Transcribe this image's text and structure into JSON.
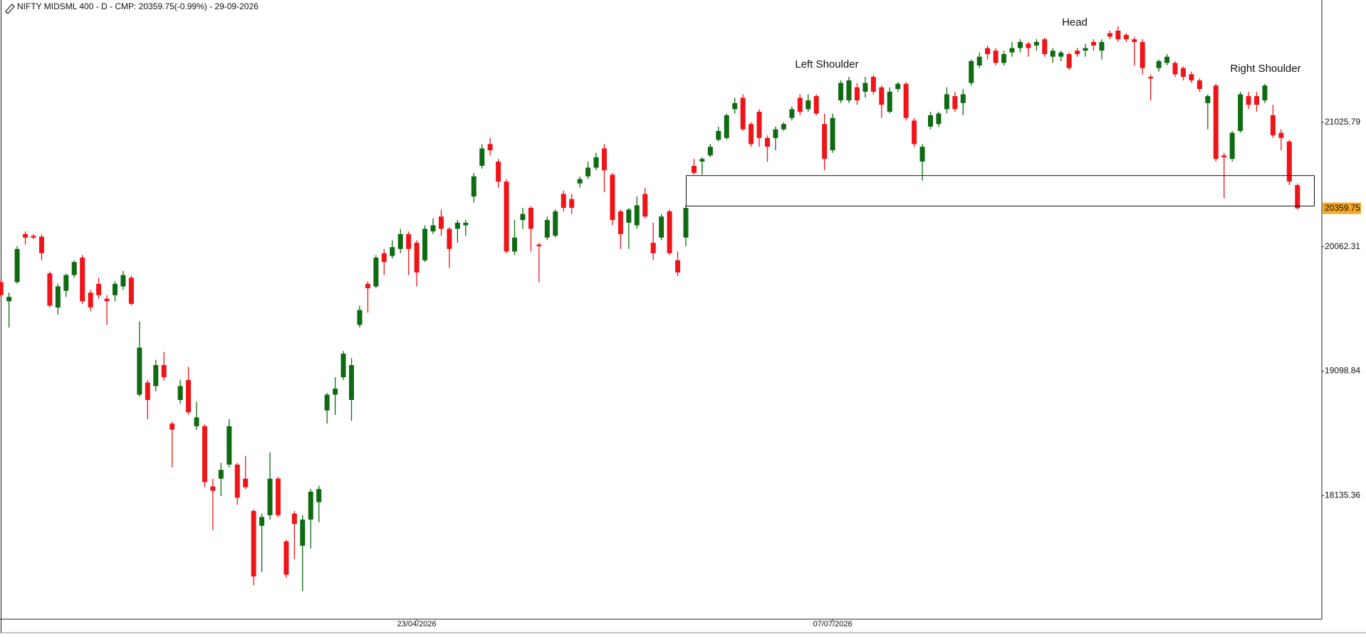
{
  "chart_data": {
    "type": "candlestick",
    "title": "NIFTY MIDSML 400 - D - CMP: 20359.75(-0.99%) - 29-09-2026",
    "annotations": [
      "Left Shoulder",
      "Head",
      "Right Shoulder"
    ],
    "cmp": 20359.75,
    "zone": [
      20377,
      20613
    ],
    "up_color": "#0f6b12",
    "down_color": "#f01418",
    "cmp_color": "#f5a623",
    "ylim": [
      17179,
      21972
    ],
    "yticks": [
      18135.36,
      19098.84,
      20062.31,
      21025.79
    ],
    "categories": [
      null,
      null,
      null,
      null,
      null,
      null,
      null,
      null,
      null,
      null,
      null,
      null,
      null,
      null,
      null,
      null,
      null,
      null,
      null,
      null,
      null,
      null,
      null,
      null,
      null,
      null,
      null,
      null,
      null,
      null,
      null,
      null,
      null,
      null,
      null,
      null,
      null,
      null,
      null,
      null,
      null,
      null,
      null,
      null,
      null,
      null,
      null,
      null,
      null,
      null,
      null,
      "23/04/2026",
      null,
      null,
      null,
      null,
      null,
      null,
      null,
      null,
      null,
      null,
      null,
      null,
      null,
      null,
      null,
      null,
      null,
      null,
      null,
      null,
      null,
      null,
      null,
      null,
      null,
      null,
      null,
      null,
      null,
      null,
      null,
      null,
      null,
      null,
      null,
      null,
      null,
      null,
      null,
      null,
      null,
      null,
      null,
      null,
      null,
      null,
      null,
      null,
      null,
      null,
      "07/07/2026",
      null,
      null,
      null,
      null,
      null,
      null,
      null,
      null,
      null,
      null,
      null,
      null,
      null,
      null,
      null,
      null,
      null,
      null,
      null,
      null,
      null,
      null,
      null,
      null,
      null,
      null,
      null,
      null,
      null,
      null,
      null,
      null,
      null,
      null,
      null,
      null,
      null,
      null,
      null,
      null,
      null,
      null,
      null,
      null,
      null,
      null,
      null,
      null,
      null,
      null,
      null,
      null,
      null,
      null,
      null,
      null,
      null
    ],
    "ohlc": [
      [
        19788,
        19809,
        19674,
        19687
      ],
      [
        19640,
        19707,
        19437,
        19674
      ],
      [
        19788,
        20066,
        19775,
        20045
      ],
      [
        20160,
        20181,
        20079,
        20133
      ],
      [
        20147,
        20160,
        20120,
        20133
      ],
      [
        20140,
        20160,
        19957,
        20012
      ],
      [
        19856,
        19870,
        19592,
        19606
      ],
      [
        19592,
        19775,
        19538,
        19755
      ],
      [
        19721,
        19856,
        19674,
        19843
      ],
      [
        19843,
        19957,
        19822,
        19944
      ],
      [
        19978,
        19998,
        19620,
        19640
      ],
      [
        19707,
        19728,
        19565,
        19592
      ],
      [
        19775,
        19822,
        19660,
        19687
      ],
      [
        19660,
        19687,
        19457,
        19640
      ],
      [
        19687,
        19795,
        19640,
        19775
      ],
      [
        19755,
        19876,
        19728,
        19843
      ],
      [
        19822,
        19836,
        19606,
        19620
      ],
      [
        18917,
        19484,
        18903,
        19281
      ],
      [
        19011,
        19031,
        18727,
        18876
      ],
      [
        18984,
        19187,
        18943,
        19146
      ],
      [
        19146,
        19248,
        19025,
        19052
      ],
      [
        18693,
        18707,
        18355,
        18646
      ],
      [
        18876,
        19031,
        18849,
        18984
      ],
      [
        19031,
        19133,
        18761,
        18781
      ],
      [
        18673,
        18862,
        18646,
        18741
      ],
      [
        18673,
        18687,
        18200,
        18240
      ],
      [
        18207,
        18267,
        17869,
        18173
      ],
      [
        18267,
        18389,
        18132,
        18335
      ],
      [
        18376,
        18727,
        18355,
        18673
      ],
      [
        18376,
        18389,
        18065,
        18119
      ],
      [
        18267,
        18443,
        18186,
        18200
      ],
      [
        18017,
        18031,
        17443,
        17510
      ],
      [
        17902,
        17997,
        17544,
        17970
      ],
      [
        17984,
        18470,
        17950,
        18267
      ],
      [
        18267,
        18281,
        17970,
        17984
      ],
      [
        17781,
        17794,
        17497,
        17524
      ],
      [
        17997,
        18017,
        17646,
        17916
      ],
      [
        17747,
        17984,
        17396,
        17950
      ],
      [
        17950,
        18186,
        17727,
        18166
      ],
      [
        18085,
        18213,
        17930,
        18186
      ],
      [
        18795,
        18930,
        18693,
        18917
      ],
      [
        18917,
        19052,
        18761,
        18964
      ],
      [
        19052,
        19255,
        19031,
        19234
      ],
      [
        18876,
        19200,
        18714,
        19146
      ],
      [
        19457,
        19606,
        19437,
        19572
      ],
      [
        19775,
        19795,
        19552,
        19741
      ],
      [
        19755,
        19998,
        19741,
        19978
      ],
      [
        20012,
        20045,
        19843,
        19944
      ],
      [
        19991,
        20113,
        19971,
        20059
      ],
      [
        20045,
        20201,
        20012,
        20160
      ],
      [
        20160,
        20181,
        19843,
        20045
      ],
      [
        20093,
        20113,
        19755,
        19863
      ],
      [
        19957,
        20228,
        19944,
        20201
      ],
      [
        20181,
        20282,
        20160,
        20228
      ],
      [
        20296,
        20350,
        20147,
        20201
      ],
      [
        20201,
        20214,
        19897,
        20045
      ],
      [
        20201,
        20269,
        20093,
        20248
      ],
      [
        20228,
        20269,
        20147,
        20248
      ],
      [
        20451,
        20634,
        20404,
        20607
      ],
      [
        20688,
        20857,
        20667,
        20823
      ],
      [
        20857,
        20904,
        20769,
        20809
      ],
      [
        20721,
        20742,
        20519,
        20566
      ],
      [
        20566,
        20586,
        20012,
        20025
      ],
      [
        20025,
        20269,
        19998,
        20133
      ],
      [
        20269,
        20363,
        20201,
        20316
      ],
      [
        20363,
        20377,
        20025,
        20201
      ],
      [
        20079,
        20093,
        19788,
        20066
      ],
      [
        20133,
        20296,
        20113,
        20269
      ],
      [
        20147,
        20350,
        20133,
        20336
      ],
      [
        20471,
        20498,
        20336,
        20363
      ],
      [
        20431,
        20471,
        20316,
        20363
      ],
      [
        20552,
        20607,
        20519,
        20586
      ],
      [
        20607,
        20721,
        20586,
        20674
      ],
      [
        20674,
        20789,
        20654,
        20755
      ],
      [
        20823,
        20857,
        20485,
        20654
      ],
      [
        20620,
        20634,
        20228,
        20269
      ],
      [
        20336,
        20350,
        20045,
        20160
      ],
      [
        20248,
        20363,
        20045,
        20350
      ],
      [
        20228,
        20451,
        20201,
        20383
      ],
      [
        20471,
        20519,
        20282,
        20296
      ],
      [
        20093,
        20248,
        19957,
        20012
      ],
      [
        20133,
        20316,
        20113,
        20296
      ],
      [
        20336,
        20350,
        19998,
        20012
      ],
      [
        19957,
        20025,
        19836,
        19863
      ],
      [
        20133,
        20383,
        20066,
        20363
      ],
      [
        20688,
        20742,
        20620,
        20634
      ],
      [
        20721,
        20755,
        20620,
        20742
      ],
      [
        20769,
        20857,
        20755,
        20836
      ],
      [
        20890,
        20992,
        20877,
        20958
      ],
      [
        20904,
        21093,
        20890,
        21080
      ],
      [
        21127,
        21215,
        21093,
        21174
      ],
      [
        21215,
        21242,
        20958,
        20971
      ],
      [
        21012,
        21026,
        20836,
        20857
      ],
      [
        21107,
        21127,
        20836,
        20904
      ],
      [
        20904,
        20924,
        20721,
        20836
      ],
      [
        20904,
        20992,
        20809,
        20971
      ],
      [
        20971,
        21026,
        20958,
        21012
      ],
      [
        21059,
        21147,
        21039,
        21127
      ],
      [
        21215,
        21242,
        21080,
        21107
      ],
      [
        21127,
        21242,
        21107,
        21195
      ],
      [
        21228,
        21242,
        21080,
        21093
      ],
      [
        21012,
        21093,
        20654,
        20742
      ],
      [
        20809,
        21093,
        20789,
        21059
      ],
      [
        21195,
        21350,
        21174,
        21330
      ],
      [
        21195,
        21377,
        21174,
        21350
      ],
      [
        21296,
        21330,
        21161,
        21195
      ],
      [
        21262,
        21377,
        21215,
        21330
      ],
      [
        21377,
        21391,
        21242,
        21262
      ],
      [
        21296,
        21310,
        21059,
        21161
      ],
      [
        21107,
        21296,
        21093,
        21262
      ],
      [
        21283,
        21337,
        21262,
        21323
      ],
      [
        21323,
        21337,
        21039,
        21059
      ],
      [
        21039,
        21059,
        20836,
        20857
      ],
      [
        20721,
        20857,
        20573,
        20836
      ],
      [
        20992,
        21107,
        20971,
        21080
      ],
      [
        21012,
        21107,
        20992,
        21093
      ],
      [
        21127,
        21296,
        21093,
        21242
      ],
      [
        21228,
        21262,
        21107,
        21127
      ],
      [
        21174,
        21283,
        21080,
        21242
      ],
      [
        21330,
        21512,
        21310,
        21499
      ],
      [
        21465,
        21566,
        21445,
        21533
      ],
      [
        21600,
        21620,
        21512,
        21553
      ],
      [
        21580,
        21600,
        21465,
        21485
      ],
      [
        21485,
        21580,
        21465,
        21553
      ],
      [
        21566,
        21647,
        21533,
        21600
      ],
      [
        21600,
        21668,
        21566,
        21647
      ],
      [
        21634,
        21647,
        21533,
        21600
      ],
      [
        21620,
        21668,
        21580,
        21647
      ],
      [
        21668,
        21681,
        21533,
        21553
      ],
      [
        21533,
        21600,
        21485,
        21580
      ],
      [
        21533,
        21580,
        21499,
        21566
      ],
      [
        21553,
        21566,
        21431,
        21445
      ],
      [
        21580,
        21600,
        21533,
        21553
      ],
      [
        21580,
        21634,
        21533,
        21600
      ],
      [
        21647,
        21668,
        21580,
        21620
      ],
      [
        21580,
        21668,
        21512,
        21647
      ],
      [
        21715,
        21735,
        21668,
        21688
      ],
      [
        21735,
        21769,
        21647,
        21668
      ],
      [
        21702,
        21715,
        21647,
        21668
      ],
      [
        21668,
        21688,
        21465,
        21647
      ],
      [
        21647,
        21668,
        21397,
        21445
      ],
      [
        21377,
        21397,
        21195,
        21364
      ],
      [
        21445,
        21512,
        21418,
        21499
      ],
      [
        21485,
        21553,
        21465,
        21533
      ],
      [
        21485,
        21499,
        21377,
        21397
      ],
      [
        21445,
        21458,
        21350,
        21377
      ],
      [
        21397,
        21418,
        21330,
        21350
      ],
      [
        21350,
        21364,
        21262,
        21283
      ],
      [
        21174,
        21242,
        20971,
        21228
      ],
      [
        21310,
        21323,
        20721,
        20742
      ],
      [
        20769,
        20789,
        20437,
        20755
      ],
      [
        20742,
        20958,
        20721,
        20944
      ],
      [
        20958,
        21262,
        20944,
        21242
      ],
      [
        21228,
        21262,
        21127,
        21161
      ],
      [
        21228,
        21262,
        21107,
        21161
      ],
      [
        21195,
        21323,
        21174,
        21310
      ],
      [
        21080,
        21161,
        20904,
        20924
      ],
      [
        20944,
        20971,
        20809,
        20904
      ],
      [
        20877,
        20890,
        20539,
        20566
      ],
      [
        20539,
        20552,
        20350,
        20359.75
      ]
    ]
  }
}
